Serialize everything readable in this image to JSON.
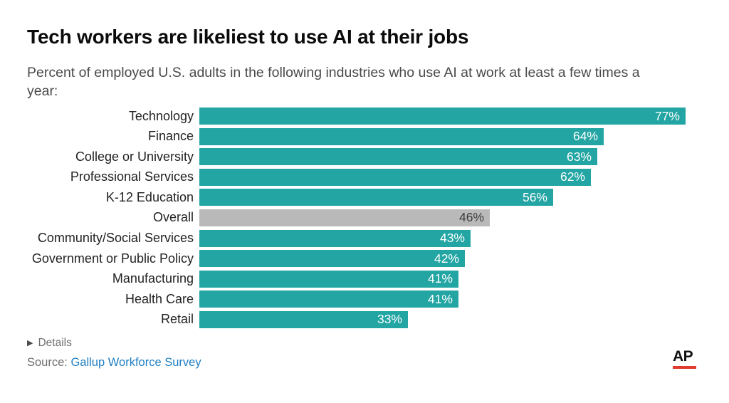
{
  "header": {
    "title": "Tech workers are likeliest to use AI at their jobs",
    "subtitle": "Percent of employed U.S. adults in the following industries who use AI at work at least a few times a year:"
  },
  "chart_data": {
    "type": "bar",
    "orientation": "horizontal",
    "title": "Tech workers are likeliest to use AI at their jobs",
    "subtitle": "Percent of employed U.S. adults in the following industries who use AI at work at least a few times a year:",
    "categories": [
      "Technology",
      "Finance",
      "College or University",
      "Professional Services",
      "K-12 Education",
      "Overall",
      "Community/Social Services",
      "Government or Public Policy",
      "Manufacturing",
      "Health Care",
      "Retail"
    ],
    "values": [
      77,
      64,
      63,
      62,
      56,
      46,
      43,
      42,
      41,
      41,
      33
    ],
    "value_labels": [
      "77%",
      "64%",
      "63%",
      "62%",
      "56%",
      "46%",
      "43%",
      "42%",
      "41%",
      "41%",
      "33%"
    ],
    "highlight_category": "Overall",
    "bar_color": "#22a5a3",
    "highlight_bar_color": "#b9b9b9",
    "value_label_position": "inside-end",
    "xlim": [
      0,
      77
    ],
    "grid": false,
    "legend": false
  },
  "footer": {
    "details_triangle": "▶",
    "details_label": "Details",
    "source_prefix": "Source:",
    "source_link_text": "Gallup Workforce Survey",
    "ap_logo_text": "AP",
    "ap_logo_bar_color": "#e13a2f"
  }
}
